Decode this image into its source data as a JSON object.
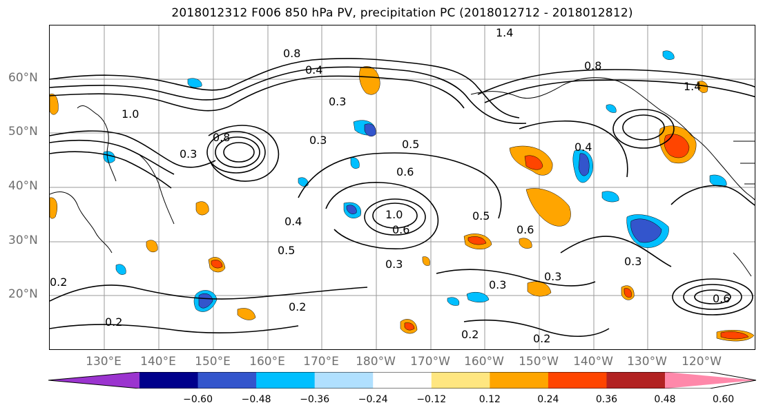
{
  "title": "2018012312 F006 850 hPa PV, precipitation PC (2018012712 - 2018012812)",
  "lat_labels": [
    "60°N",
    "50°N",
    "40°N",
    "30°N",
    "20°N"
  ],
  "lon_labels": [
    "130°E",
    "140°E",
    "150°E",
    "160°E",
    "170°E",
    "180°W",
    "170°W",
    "160°W",
    "150°W",
    "140°W",
    "130°W",
    "120°W"
  ],
  "contour_labels": [
    "1.4",
    "0.8",
    "0.4",
    "0.3",
    "1.0",
    "0.3",
    "0.5",
    "0.6",
    "0.8",
    "0.3",
    "1.0",
    "0.6",
    "0.5",
    "0.4",
    "0.5",
    "0.6",
    "0.3",
    "0.2",
    "0.2",
    "0.2",
    "0.3",
    "0.3",
    "0.2",
    "0.6",
    "0.3",
    "0.8",
    "1.4",
    "0.4",
    "0.2"
  ],
  "colorbar": {
    "ticks": [
      "−0.60",
      "−0.48",
      "−0.36",
      "−0.24",
      "−0.12",
      "0.12",
      "0.24",
      "0.36",
      "0.48",
      "0.60"
    ],
    "colors": [
      "#9b34cf",
      "#00008b",
      "#3355cc",
      "#00bfff",
      "#b0e0ff",
      "#ffffff",
      "#ffe680",
      "#ffa500",
      "#ff4500",
      "#b22222",
      "#ff88aa"
    ]
  }
}
